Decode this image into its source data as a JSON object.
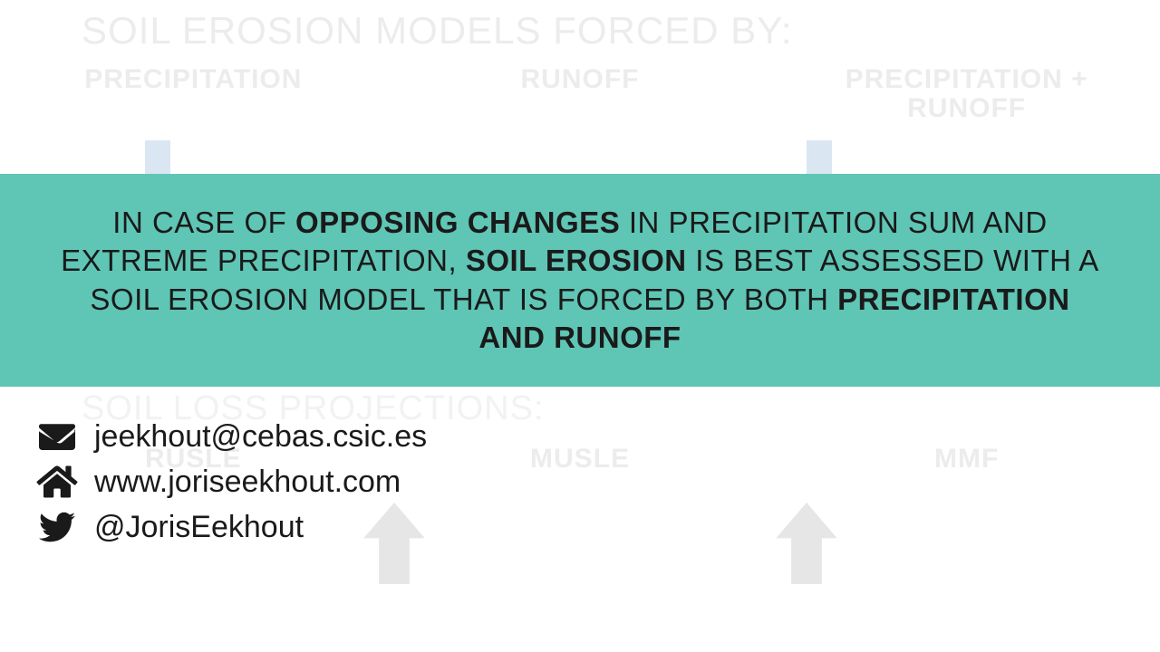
{
  "background": {
    "title": "SOIL EROSION MODELS FORCED BY:",
    "headers": [
      "PRECIPITATION",
      "RUNOFF",
      "PRECIPITATION + RUNOFF"
    ],
    "sub_title": "SOIL LOSS PROJECTIONS:",
    "models": [
      "RUSLE",
      "MUSLE",
      "MMF"
    ],
    "faded_text_color": "#ececec",
    "faded_blue": "#dbe6f3",
    "grey_arrow_color": "#e6e6e6"
  },
  "banner": {
    "background_color": "#5fc5b5",
    "text_color": "#1a1a1a",
    "segments": [
      {
        "text": "IN CASE OF ",
        "bold": false
      },
      {
        "text": "OPPOSING CHANGES",
        "bold": true
      },
      {
        "text": " IN PRECIPITATION SUM AND EXTREME PRECIPITATION, ",
        "bold": false
      },
      {
        "text": "SOIL EROSION",
        "bold": true
      },
      {
        "text": " IS BEST ASSESSED WITH A SOIL EROSION MODEL THAT IS FORCED BY BOTH ",
        "bold": false
      },
      {
        "text": "PRECIPITATION AND RUNOFF",
        "bold": true
      }
    ]
  },
  "contacts": {
    "email": "jeekhout@cebas.csic.es",
    "website": "www.joriseekhout.com",
    "twitter": "@JorisEekhout"
  }
}
